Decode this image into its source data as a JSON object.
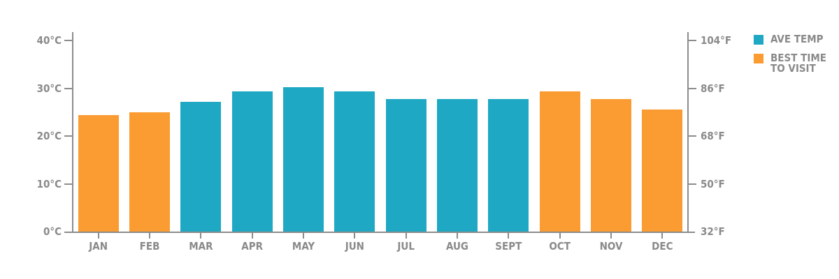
{
  "chart_data": {
    "type": "bar",
    "title": "",
    "categories": [
      "JAN",
      "FEB",
      "MAR",
      "APR",
      "MAY",
      "JUN",
      "JUL",
      "AUG",
      "SEPT",
      "OCT",
      "NOV",
      "DEC"
    ],
    "bars": [
      {
        "month": "JAN",
        "value_c": 24.4,
        "category": "best_time"
      },
      {
        "month": "FEB",
        "value_c": 25.0,
        "category": "best_time"
      },
      {
        "month": "MAR",
        "value_c": 27.2,
        "category": "ave_temp"
      },
      {
        "month": "APR",
        "value_c": 29.4,
        "category": "ave_temp"
      },
      {
        "month": "MAY",
        "value_c": 30.2,
        "category": "ave_temp"
      },
      {
        "month": "JUN",
        "value_c": 29.4,
        "category": "ave_temp"
      },
      {
        "month": "JUL",
        "value_c": 27.8,
        "category": "ave_temp"
      },
      {
        "month": "AUG",
        "value_c": 27.8,
        "category": "ave_temp"
      },
      {
        "month": "SEPT",
        "value_c": 27.8,
        "category": "ave_temp"
      },
      {
        "month": "OCT",
        "value_c": 29.4,
        "category": "best_time"
      },
      {
        "month": "NOV",
        "value_c": 27.8,
        "category": "best_time"
      },
      {
        "month": "DEC",
        "value_c": 25.6,
        "category": "best_time"
      }
    ],
    "left_axis": {
      "unit": "°C",
      "range_c": [
        0,
        40
      ],
      "ticks": [
        {
          "c": 40,
          "label": "40°C"
        },
        {
          "c": 30,
          "label": "30°C"
        },
        {
          "c": 20,
          "label": "20°C"
        },
        {
          "c": 10,
          "label": "10°C"
        },
        {
          "c": 0,
          "label": "0°C"
        }
      ]
    },
    "right_axis": {
      "unit": "°F",
      "range_f": [
        32,
        104
      ],
      "ticks": [
        {
          "f": 104,
          "label": "104°F"
        },
        {
          "f": 86,
          "label": "86°F"
        },
        {
          "f": 68,
          "label": "68°F"
        },
        {
          "f": 50,
          "label": "50°F"
        },
        {
          "f": 32,
          "label": "32°F"
        }
      ]
    },
    "legend": [
      {
        "key": "ave_temp",
        "label": "AVE TEMP",
        "color": "#1FA8C4"
      },
      {
        "key": "best_time",
        "label": "BEST TIME TO VISIT",
        "color": "#FA9C32"
      }
    ],
    "colors": {
      "ave_temp": "#1FA8C4",
      "best_time": "#FA9C32"
    },
    "grid": false,
    "legend_position": "top-right"
  },
  "styles": {
    "axis_color": "#8C8C8C",
    "label_color": "#8A8A8A",
    "background": "#FFFFFF"
  }
}
